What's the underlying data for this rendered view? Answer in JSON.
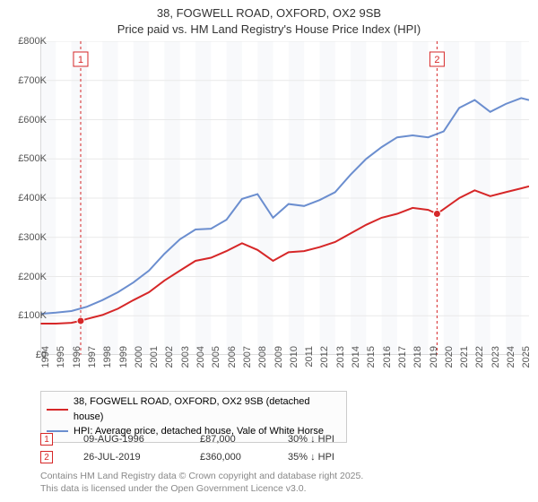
{
  "title": {
    "line1": "38, FOGWELL ROAD, OXFORD, OX2 9SB",
    "line2": "Price paid vs. HM Land Registry's House Price Index (HPI)"
  },
  "chart": {
    "type": "line",
    "x_years": [
      1994,
      1995,
      1996,
      1997,
      1998,
      1999,
      2000,
      2001,
      2002,
      2003,
      2004,
      2005,
      2006,
      2007,
      2008,
      2009,
      2010,
      2011,
      2012,
      2013,
      2014,
      2015,
      2016,
      2017,
      2018,
      2019,
      2020,
      2021,
      2022,
      2023,
      2024,
      2025
    ],
    "ylim": [
      0,
      800000
    ],
    "ytick_step": 100000,
    "ytick_labels": [
      "£0",
      "£100K",
      "£200K",
      "£300K",
      "£400K",
      "£500K",
      "£600K",
      "£700K",
      "£800K"
    ],
    "background_color": "#ffffff",
    "alt_band_color": "#f2f4f7",
    "grid_color": "#e9e9e9",
    "series": [
      {
        "name": "price_paid",
        "label": "38, FOGWELL ROAD, OXFORD, OX2 9SB (detached house)",
        "color": "#d62728",
        "x": [
          1994,
          1995,
          1996,
          1996.6,
          1997,
          1998,
          1999,
          2000,
          2001,
          2002,
          2003,
          2004,
          2005,
          2006,
          2007,
          2008,
          2009,
          2010,
          2011,
          2012,
          2013,
          2014,
          2015,
          2016,
          2017,
          2018,
          2019,
          2019.57,
          2020,
          2021,
          2022,
          2023,
          2024,
          2025,
          2025.5
        ],
        "y": [
          80000,
          80000,
          82000,
          87000,
          92000,
          102000,
          118000,
          140000,
          160000,
          190000,
          215000,
          240000,
          248000,
          265000,
          285000,
          268000,
          240000,
          262000,
          265000,
          275000,
          288000,
          310000,
          332000,
          350000,
          360000,
          375000,
          370000,
          360000,
          372000,
          400000,
          420000,
          405000,
          415000,
          425000,
          430000
        ]
      },
      {
        "name": "hpi",
        "label": "HPI: Average price, detached house, Vale of White Horse",
        "color": "#6b8ecf",
        "x": [
          1994,
          1995,
          1996,
          1997,
          1998,
          1999,
          2000,
          2001,
          2002,
          2003,
          2004,
          2005,
          2006,
          2007,
          2008,
          2009,
          2010,
          2011,
          2012,
          2013,
          2014,
          2015,
          2016,
          2017,
          2018,
          2019,
          2020,
          2021,
          2022,
          2023,
          2024,
          2025,
          2025.5
        ],
        "y": [
          105000,
          108000,
          112000,
          123000,
          140000,
          160000,
          185000,
          215000,
          258000,
          295000,
          320000,
          322000,
          345000,
          398000,
          410000,
          350000,
          385000,
          380000,
          395000,
          415000,
          460000,
          500000,
          530000,
          555000,
          560000,
          555000,
          570000,
          630000,
          650000,
          620000,
          640000,
          655000,
          650000
        ]
      }
    ],
    "markers": [
      {
        "num": "1",
        "x": 1996.6,
        "y": 87000,
        "color": "#d62728"
      },
      {
        "num": "2",
        "x": 2019.57,
        "y": 360000,
        "color": "#d62728"
      }
    ]
  },
  "legend": {
    "items": [
      {
        "color": "#d62728",
        "label": "38, FOGWELL ROAD, OXFORD, OX2 9SB (detached house)"
      },
      {
        "color": "#6b8ecf",
        "label": "HPI: Average price, detached house, Vale of White Horse"
      }
    ]
  },
  "sale_rows": [
    {
      "num": "1",
      "color": "#d62728",
      "date": "09-AUG-1996",
      "price": "£87,000",
      "delta": "30% ↓ HPI"
    },
    {
      "num": "2",
      "color": "#d62728",
      "date": "26-JUL-2019",
      "price": "£360,000",
      "delta": "35% ↓ HPI"
    }
  ],
  "footer": {
    "line1": "Contains HM Land Registry data © Crown copyright and database right 2025.",
    "line2": "This data is licensed under the Open Government Licence v3.0."
  }
}
